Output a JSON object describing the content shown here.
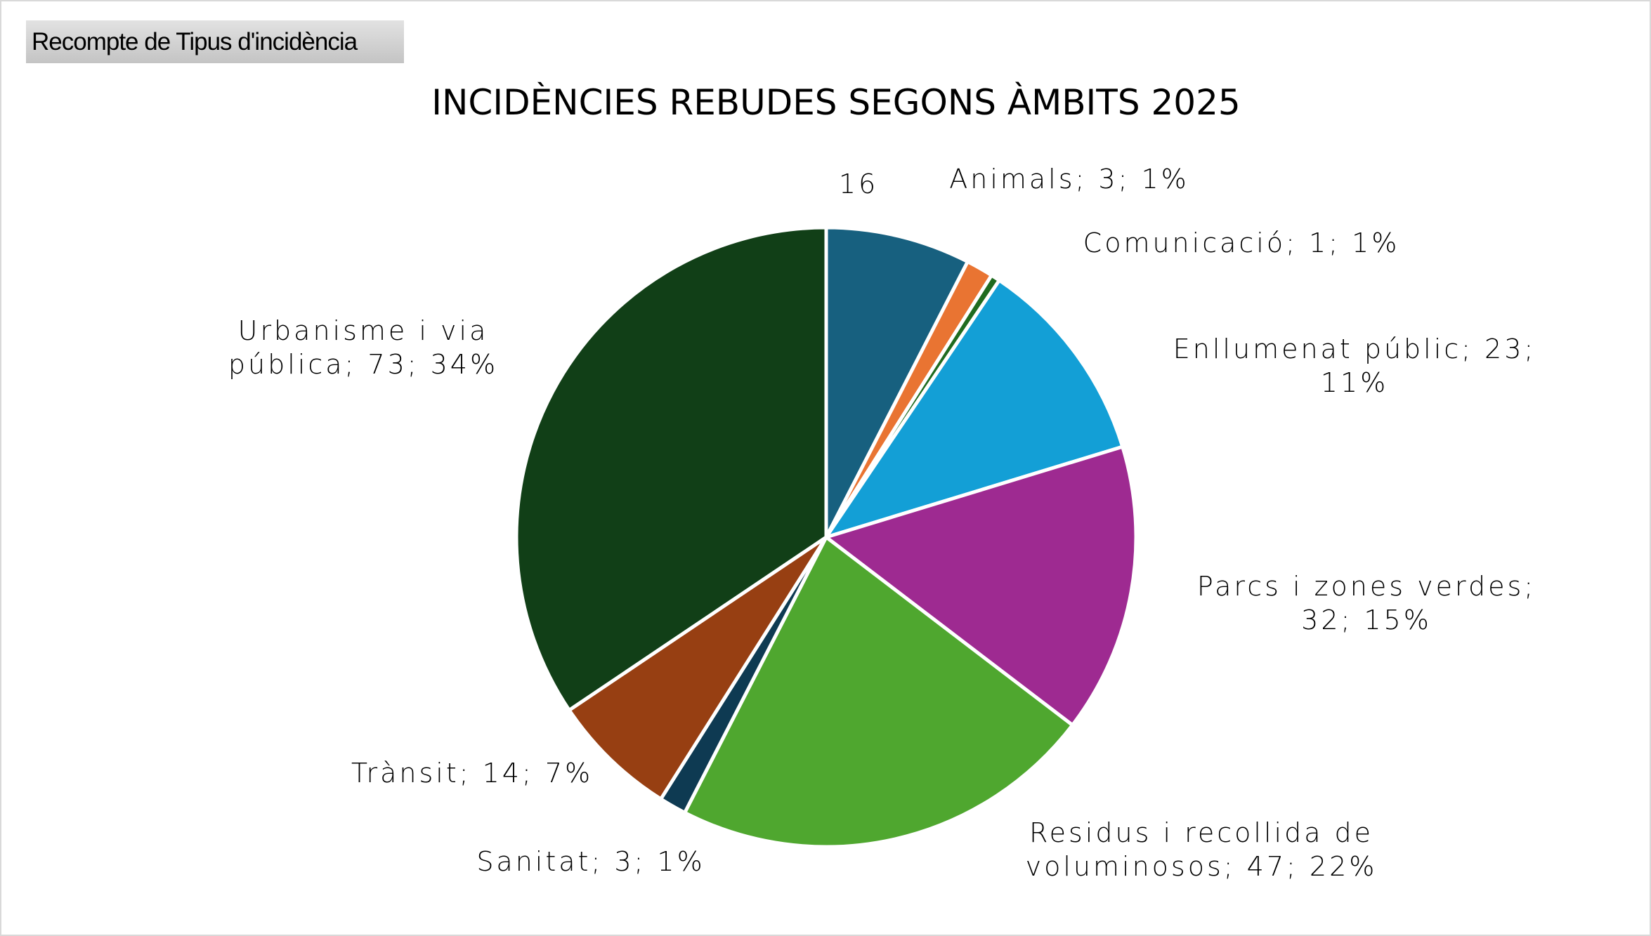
{
  "toolbar": {
    "sheet_button_label": "Recompte de Tipus d'incidència"
  },
  "chart_data": {
    "type": "pie",
    "title": "INCIDÈNCIES REBUDES SEGONS ÀMBITS 2025",
    "start_angle_deg": 0,
    "direction": "clockwise",
    "slices": [
      {
        "category": "",
        "value": 16,
        "label_lines": [
          "16"
        ],
        "color": "#17607f"
      },
      {
        "category": "Animals",
        "value": 3,
        "percent": "1%",
        "label_lines": [
          "Animals; 3; 1%"
        ],
        "color": "#e97432"
      },
      {
        "category": "Comunicació",
        "value": 1,
        "percent": "1%",
        "label_lines": [
          "Comunicació; 1; 1%"
        ],
        "color": "#1f6b1f"
      },
      {
        "category": "Enllumenat públic",
        "value": 23,
        "percent": "11%",
        "label_lines": [
          "Enllumenat públic; 23;",
          "11%"
        ],
        "color": "#139fd6"
      },
      {
        "category": "Parcs i zones verdes",
        "value": 32,
        "percent": "15%",
        "label_lines": [
          "Parcs i zones verdes;",
          "32; 15%"
        ],
        "color": "#9e2a91"
      },
      {
        "category": "Residus i recollida de voluminosos",
        "value": 47,
        "percent": "22%",
        "label_lines": [
          "Residus i recollida de",
          "voluminosos; 47; 22%"
        ],
        "color": "#4fa72f"
      },
      {
        "category": "Sanitat",
        "value": 3,
        "percent": "1%",
        "label_lines": [
          "Sanitat; 3; 1%"
        ],
        "color": "#0e3a52"
      },
      {
        "category": "Trànsit",
        "value": 14,
        "percent": "7%",
        "label_lines": [
          "Trànsit; 14; 7%"
        ],
        "color": "#973f12"
      },
      {
        "category": "Urbanisme i via pública",
        "value": 73,
        "percent": "34%",
        "label_lines": [
          "Urbanisme i via",
          "pública; 73; 34%"
        ],
        "color": "#113f17"
      }
    ]
  }
}
